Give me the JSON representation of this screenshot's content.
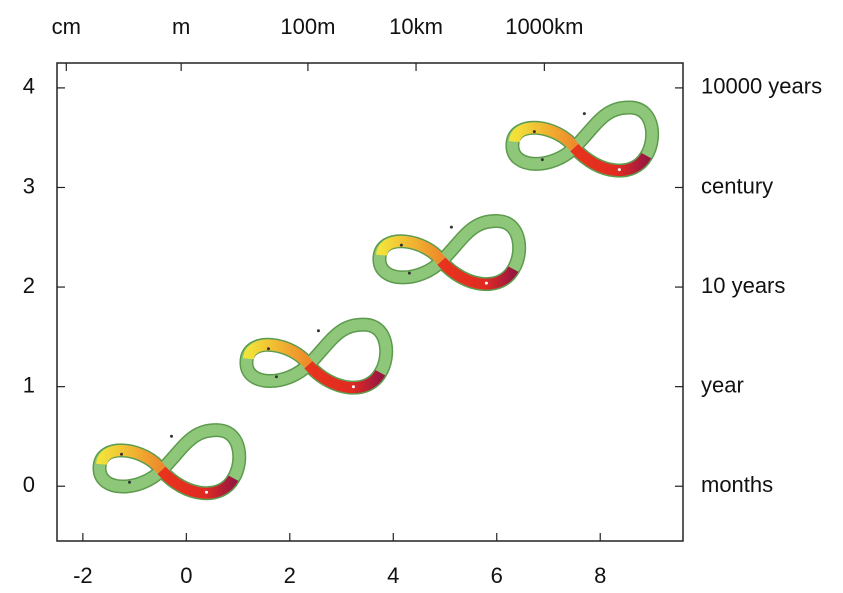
{
  "chart_data": {
    "type": "scatter",
    "x": [
      -0.48,
      2.36,
      4.93,
      7.5
    ],
    "values": [
      0.16,
      1.22,
      2.26,
      3.4
    ],
    "color": "#6aaa5a",
    "xlim": [
      -2.5,
      9.6
    ],
    "xticks": [
      -2,
      0,
      2,
      4,
      6,
      8
    ],
    "ylim": [
      -0.55,
      4.25
    ],
    "yticks": [
      0,
      1,
      2,
      3,
      4
    ],
    "x2ticks": [
      {
        "value": -2.32,
        "label": "cm"
      },
      {
        "value": -0.1,
        "label": "m"
      },
      {
        "value": 2.35,
        "label": "100m"
      },
      {
        "value": 4.44,
        "label": "10km"
      },
      {
        "value": 6.92,
        "label": "1000km"
      }
    ],
    "y2ticks": [
      {
        "value": 0,
        "label": "months"
      },
      {
        "value": 1,
        "label": "year"
      },
      {
        "value": 2,
        "label": "10 years"
      },
      {
        "value": 3,
        "label": "century"
      },
      {
        "value": 4,
        "label": "10000 years"
      }
    ],
    "grid": false
  }
}
